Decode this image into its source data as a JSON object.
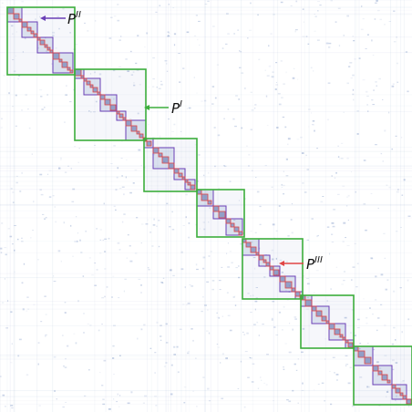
{
  "figure": {
    "background": "#ffffff",
    "colors": {
      "green": "#3cae3c",
      "purple": "#6a3fb6",
      "red": "#e04545",
      "noise": "#5f7db8"
    },
    "annotations": [
      {
        "base": "P",
        "sup": "II",
        "arrow_color": "purple"
      },
      {
        "base": "P",
        "sup": "I",
        "arrow_color": "green"
      },
      {
        "base": "P",
        "sup": "III",
        "arrow_color": "red"
      }
    ]
  }
}
